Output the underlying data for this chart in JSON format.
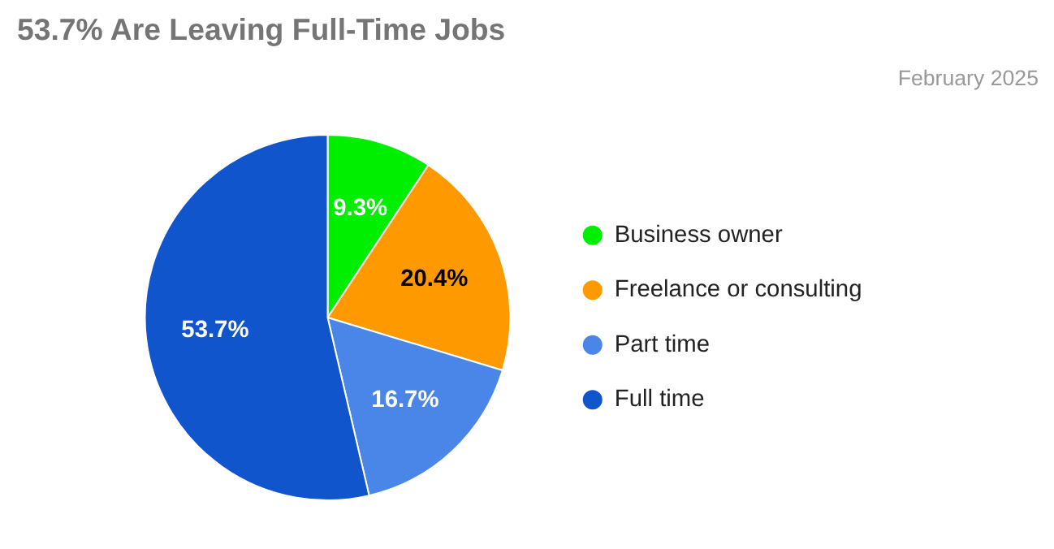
{
  "chart_data": {
    "type": "pie",
    "title": "53.7% Are Leaving Full-Time Jobs",
    "annotations": [
      "February 2025"
    ],
    "categories": [
      "Business owner",
      "Freelance or consulting",
      "Part time",
      "Full time"
    ],
    "values": [
      9.3,
      20.4,
      16.7,
      53.7
    ],
    "colors": [
      "#00ee00",
      "#ff9900",
      "#4a86e8",
      "#1155cc"
    ],
    "value_labels": [
      "9.3%",
      "20.4%",
      "16.7%",
      "53.7%"
    ],
    "legend": "right"
  }
}
